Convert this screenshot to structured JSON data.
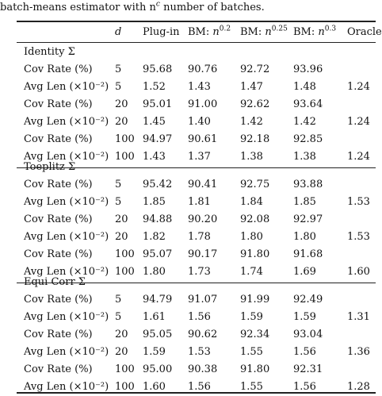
{
  "caption": "batch-means estimator with n",
  "caption_sup": "c",
  "caption_tail": " number of batches.",
  "headers": {
    "d": "d",
    "plugin": "Plug-in",
    "bm_prefix": "BM: ",
    "bm02_base": "n",
    "bm02_exp": "0.2",
    "bm025_base": "n",
    "bm025_exp": "0.25",
    "bm03_base": "n",
    "bm03_exp": "0.3",
    "oracle": "Oracle"
  },
  "groups": [
    {
      "title": "Identity Σ",
      "rows": [
        {
          "label": "Cov Rate (%)",
          "d": "5",
          "plugin": "95.68",
          "bm02": "90.76",
          "bm025": "92.72",
          "bm03": "93.96",
          "oracle": ""
        },
        {
          "label": "Avg Len (×10⁻²)",
          "d": "5",
          "plugin": "1.52",
          "bm02": "1.43",
          "bm025": "1.47",
          "bm03": "1.48",
          "oracle": "1.24"
        },
        {
          "label": "Cov Rate (%)",
          "d": "20",
          "plugin": "95.01",
          "bm02": "91.00",
          "bm025": "92.62",
          "bm03": "93.64",
          "oracle": ""
        },
        {
          "label": "Avg Len (×10⁻²)",
          "d": "20",
          "plugin": "1.45",
          "bm02": "1.40",
          "bm025": "1.42",
          "bm03": "1.42",
          "oracle": "1.24"
        },
        {
          "label": "Cov Rate (%)",
          "d": "100",
          "plugin": "94.97",
          "bm02": "90.61",
          "bm025": "92.18",
          "bm03": "92.85",
          "oracle": ""
        },
        {
          "label": "Avg Len (×10⁻²)",
          "d": "100",
          "plugin": "1.43",
          "bm02": "1.37",
          "bm025": "1.38",
          "bm03": "1.38",
          "oracle": "1.24"
        }
      ]
    },
    {
      "title": "Toeplitz Σ",
      "rows": [
        {
          "label": "Cov Rate (%)",
          "d": "5",
          "plugin": "95.42",
          "bm02": "90.41",
          "bm025": "92.75",
          "bm03": "93.88",
          "oracle": ""
        },
        {
          "label": "Avg Len (×10⁻²)",
          "d": "5",
          "plugin": "1.85",
          "bm02": "1.81",
          "bm025": "1.84",
          "bm03": "1.85",
          "oracle": "1.53"
        },
        {
          "label": "Cov Rate (%)",
          "d": "20",
          "plugin": "94.88",
          "bm02": "90.20",
          "bm025": "92.08",
          "bm03": "92.97",
          "oracle": ""
        },
        {
          "label": "Avg Len (×10⁻²)",
          "d": "20",
          "plugin": "1.82",
          "bm02": "1.78",
          "bm025": "1.80",
          "bm03": "1.80",
          "oracle": "1.53"
        },
        {
          "label": "Cov Rate (%)",
          "d": "100",
          "plugin": "95.07",
          "bm02": "90.17",
          "bm025": "91.80",
          "bm03": "91.68",
          "oracle": ""
        },
        {
          "label": "Avg Len (×10⁻²)",
          "d": "100",
          "plugin": "1.80",
          "bm02": "1.73",
          "bm025": "1.74",
          "bm03": "1.69",
          "oracle": "1.60"
        }
      ]
    },
    {
      "title": "Equi Corr Σ",
      "rows": [
        {
          "label": "Cov Rate (%)",
          "d": "5",
          "plugin": "94.79",
          "bm02": "91.07",
          "bm025": "91.99",
          "bm03": "92.49",
          "oracle": ""
        },
        {
          "label": "Avg Len (×10⁻²)",
          "d": "5",
          "plugin": "1.61",
          "bm02": "1.56",
          "bm025": "1.59",
          "bm03": "1.59",
          "oracle": "1.31"
        },
        {
          "label": "Cov Rate (%)",
          "d": "20",
          "plugin": "95.05",
          "bm02": "90.62",
          "bm025": "92.34",
          "bm03": "93.04",
          "oracle": ""
        },
        {
          "label": "Avg Len (×10⁻²)",
          "d": "20",
          "plugin": "1.59",
          "bm02": "1.53",
          "bm025": "1.55",
          "bm03": "1.56",
          "oracle": "1.36"
        },
        {
          "label": "Cov Rate (%)",
          "d": "100",
          "plugin": "95.00",
          "bm02": "90.38",
          "bm025": "91.80",
          "bm03": "92.31",
          "oracle": ""
        },
        {
          "label": "Avg Len (×10⁻²)",
          "d": "100",
          "plugin": "1.60",
          "bm02": "1.56",
          "bm025": "1.55",
          "bm03": "1.56",
          "oracle": "1.28"
        }
      ]
    }
  ]
}
